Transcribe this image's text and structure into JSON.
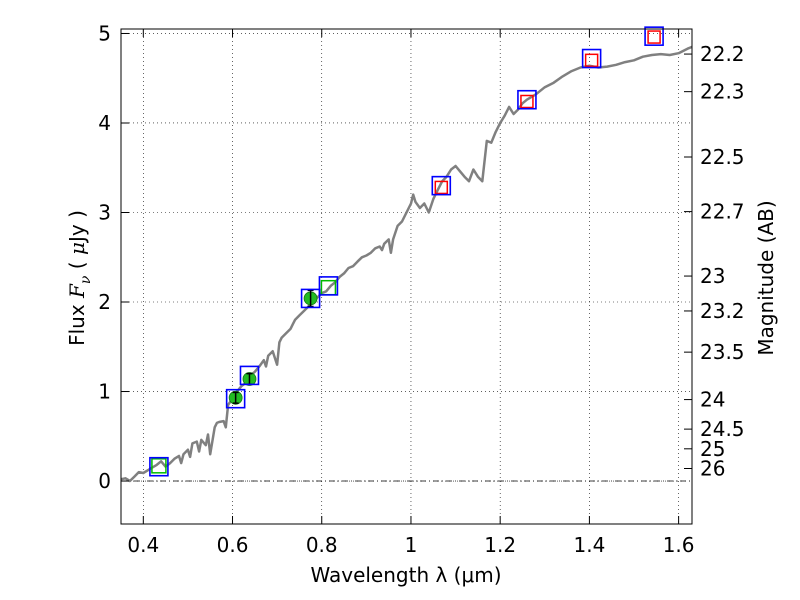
{
  "chart_data": {
    "type": "scatter",
    "title": "",
    "xlabel": "Wavelength  λ (μm)",
    "ylabel_parts": [
      "Flux  ",
      "F",
      "ν",
      "  ( ",
      "μ",
      "Jy )"
    ],
    "y2label": "Magnitude (AB)",
    "xlim": [
      0.35,
      1.63
    ],
    "ylim": [
      -0.48,
      5.05
    ],
    "grid": true,
    "xticks": [
      {
        "value": 0.4,
        "label": "0.4"
      },
      {
        "value": 0.6,
        "label": "0.6"
      },
      {
        "value": 0.8,
        "label": "0.8"
      },
      {
        "value": 1.0,
        "label": "1"
      },
      {
        "value": 1.2,
        "label": "1.2"
      },
      {
        "value": 1.4,
        "label": "1.4"
      },
      {
        "value": 1.6,
        "label": "1.6"
      }
    ],
    "yticks": [
      {
        "value": 0,
        "label": "0"
      },
      {
        "value": 1,
        "label": "1"
      },
      {
        "value": 2,
        "label": "2"
      },
      {
        "value": 3,
        "label": "3"
      },
      {
        "value": 4,
        "label": "4"
      },
      {
        "value": 5,
        "label": "5"
      }
    ],
    "magnitude_ticks": [
      {
        "label": "22.2",
        "flux": 4.77
      },
      {
        "label": "22.3",
        "flux": 4.35
      },
      {
        "label": "22.5",
        "flux": 3.62
      },
      {
        "label": "22.7",
        "flux": 3.01
      },
      {
        "label": "23",
        "flux": 2.29
      },
      {
        "label": "23.2",
        "flux": 1.9
      },
      {
        "label": "23.5",
        "flux": 1.44
      },
      {
        "label": "24",
        "flux": 0.91
      },
      {
        "label": "24.5",
        "flux": 0.58
      },
      {
        "label": "25",
        "flux": 0.36
      },
      {
        "label": "26",
        "flux": 0.14
      }
    ],
    "zero_line": 0,
    "series": [
      {
        "kind": "model",
        "color": "#808080",
        "points": [
          [
            0.35,
            0.02
          ],
          [
            0.36,
            0.03
          ],
          [
            0.37,
            0.0
          ],
          [
            0.38,
            0.05
          ],
          [
            0.39,
            0.1
          ],
          [
            0.4,
            0.09
          ],
          [
            0.41,
            0.12
          ],
          [
            0.42,
            0.15
          ],
          [
            0.43,
            0.18
          ],
          [
            0.44,
            0.22
          ],
          [
            0.45,
            0.16
          ],
          [
            0.46,
            0.2
          ],
          [
            0.47,
            0.25
          ],
          [
            0.48,
            0.28
          ],
          [
            0.485,
            0.2
          ],
          [
            0.49,
            0.3
          ],
          [
            0.5,
            0.35
          ],
          [
            0.505,
            0.27
          ],
          [
            0.51,
            0.42
          ],
          [
            0.52,
            0.44
          ],
          [
            0.525,
            0.33
          ],
          [
            0.53,
            0.46
          ],
          [
            0.54,
            0.4
          ],
          [
            0.545,
            0.52
          ],
          [
            0.55,
            0.3
          ],
          [
            0.56,
            0.6
          ],
          [
            0.565,
            0.65
          ],
          [
            0.57,
            0.66
          ],
          [
            0.58,
            0.67
          ],
          [
            0.585,
            0.6
          ],
          [
            0.59,
            0.85
          ],
          [
            0.6,
            0.92
          ],
          [
            0.61,
            1.0
          ],
          [
            0.62,
            1.06
          ],
          [
            0.63,
            1.1
          ],
          [
            0.64,
            1.18
          ],
          [
            0.65,
            1.22
          ],
          [
            0.66,
            1.28
          ],
          [
            0.67,
            1.35
          ],
          [
            0.675,
            1.28
          ],
          [
            0.68,
            1.4
          ],
          [
            0.69,
            1.45
          ],
          [
            0.7,
            1.3
          ],
          [
            0.705,
            1.55
          ],
          [
            0.71,
            1.6
          ],
          [
            0.72,
            1.65
          ],
          [
            0.73,
            1.7
          ],
          [
            0.735,
            1.75
          ],
          [
            0.74,
            1.8
          ],
          [
            0.75,
            1.85
          ],
          [
            0.76,
            1.9
          ],
          [
            0.77,
            1.95
          ],
          [
            0.78,
            2.0
          ],
          [
            0.79,
            2.05
          ],
          [
            0.8,
            2.1
          ],
          [
            0.81,
            2.12
          ],
          [
            0.82,
            2.18
          ],
          [
            0.83,
            2.22
          ],
          [
            0.84,
            2.28
          ],
          [
            0.85,
            2.32
          ],
          [
            0.86,
            2.38
          ],
          [
            0.87,
            2.4
          ],
          [
            0.88,
            2.45
          ],
          [
            0.89,
            2.5
          ],
          [
            0.9,
            2.52
          ],
          [
            0.91,
            2.55
          ],
          [
            0.92,
            2.6
          ],
          [
            0.93,
            2.62
          ],
          [
            0.935,
            2.58
          ],
          [
            0.94,
            2.65
          ],
          [
            0.95,
            2.7
          ],
          [
            0.955,
            2.55
          ],
          [
            0.96,
            2.7
          ],
          [
            0.97,
            2.85
          ],
          [
            0.98,
            2.9
          ],
          [
            0.99,
            3.0
          ],
          [
            1.0,
            3.1
          ],
          [
            1.005,
            3.2
          ],
          [
            1.01,
            3.12
          ],
          [
            1.02,
            3.05
          ],
          [
            1.03,
            3.1
          ],
          [
            1.04,
            3.0
          ],
          [
            1.05,
            3.15
          ],
          [
            1.06,
            3.25
          ],
          [
            1.07,
            3.35
          ],
          [
            1.08,
            3.4
          ],
          [
            1.09,
            3.48
          ],
          [
            1.1,
            3.52
          ],
          [
            1.11,
            3.46
          ],
          [
            1.12,
            3.4
          ],
          [
            1.13,
            3.35
          ],
          [
            1.14,
            3.48
          ],
          [
            1.15,
            3.4
          ],
          [
            1.16,
            3.35
          ],
          [
            1.17,
            3.8
          ],
          [
            1.18,
            3.78
          ],
          [
            1.19,
            3.9
          ],
          [
            1.2,
            4.0
          ],
          [
            1.21,
            4.08
          ],
          [
            1.22,
            4.18
          ],
          [
            1.23,
            4.1
          ],
          [
            1.24,
            4.15
          ],
          [
            1.25,
            4.22
          ],
          [
            1.26,
            4.26
          ],
          [
            1.28,
            4.32
          ],
          [
            1.3,
            4.4
          ],
          [
            1.32,
            4.45
          ],
          [
            1.34,
            4.52
          ],
          [
            1.36,
            4.58
          ],
          [
            1.38,
            4.62
          ],
          [
            1.4,
            4.64
          ],
          [
            1.42,
            4.62
          ],
          [
            1.44,
            4.63
          ],
          [
            1.46,
            4.65
          ],
          [
            1.48,
            4.68
          ],
          [
            1.5,
            4.7
          ],
          [
            1.52,
            4.74
          ],
          [
            1.54,
            4.76
          ],
          [
            1.56,
            4.77
          ],
          [
            1.58,
            4.76
          ],
          [
            1.6,
            4.78
          ],
          [
            1.62,
            4.83
          ],
          [
            1.63,
            4.85
          ]
        ]
      },
      {
        "kind": "model-photometry",
        "marker": "square",
        "color": "#0000ff",
        "points": [
          [
            0.435,
            0.16
          ],
          [
            0.607,
            0.92
          ],
          [
            0.638,
            1.18
          ],
          [
            0.775,
            2.04
          ],
          [
            0.815,
            2.18
          ],
          [
            1.068,
            3.3
          ],
          [
            1.26,
            4.26
          ],
          [
            1.405,
            4.72
          ],
          [
            1.545,
            4.97
          ]
        ]
      },
      {
        "kind": "photometry-red",
        "marker": "square",
        "color": "#ff0000",
        "points": [
          [
            1.068,
            3.28
          ],
          [
            1.26,
            4.24
          ],
          [
            1.405,
            4.7
          ],
          [
            1.545,
            4.96
          ]
        ]
      },
      {
        "kind": "photometry-green-box",
        "marker": "square",
        "color": "#00bb00",
        "points": [
          [
            0.435,
            0.17
          ],
          [
            0.815,
            2.16
          ]
        ]
      },
      {
        "kind": "observed",
        "marker": "circle",
        "color": "#22bb22",
        "errorbars": true,
        "points": [
          {
            "x": 0.607,
            "y": 0.93,
            "err": 0.06
          },
          {
            "x": 0.638,
            "y": 1.14,
            "err": 0.06
          },
          {
            "x": 0.775,
            "y": 2.04,
            "err": 0.09
          }
        ]
      }
    ]
  }
}
